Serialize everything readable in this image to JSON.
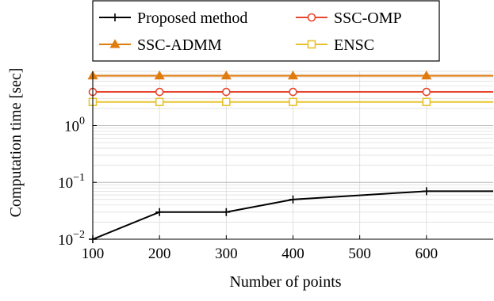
{
  "chart_data": {
    "type": "line",
    "title": "",
    "xlabel": "Number of points",
    "ylabel": "Computation time [sec]",
    "xlim": [
      100,
      700
    ],
    "ylim": [
      0.01,
      9
    ],
    "yscale": "log",
    "x_ticks": [
      "100",
      "200",
      "300",
      "400",
      "500",
      "600"
    ],
    "x_tick_values": [
      100,
      200,
      300,
      400,
      500,
      600
    ],
    "y_ticks": [
      {
        "value": 0.01,
        "base": "10",
        "exp": "−2"
      },
      {
        "value": 0.1,
        "base": "10",
        "exp": "−1"
      },
      {
        "value": 1,
        "base": "10",
        "exp": "0"
      }
    ],
    "grid": true,
    "legend_position": "top",
    "series": [
      {
        "name": "Proposed method",
        "color": "#000000",
        "marker": "plus",
        "x": [
          100,
          200,
          300,
          400,
          600,
          700
        ],
        "values": [
          0.01,
          0.03,
          0.03,
          0.05,
          0.07,
          0.07
        ]
      },
      {
        "name": "SSC-OMP",
        "color": "#e8452e",
        "marker": "circle",
        "x": [
          100,
          200,
          300,
          400,
          600,
          700
        ],
        "values": [
          3.9,
          3.9,
          3.9,
          3.9,
          3.9,
          3.9
        ]
      },
      {
        "name": "SSC-ADMM",
        "color": "#e07b0e",
        "marker": "triangle",
        "x": [
          100,
          200,
          300,
          400,
          600,
          700
        ],
        "values": [
          7.5,
          7.5,
          7.5,
          7.5,
          7.5,
          7.5
        ]
      },
      {
        "name": "ENSC",
        "color": "#e8c22e",
        "marker": "square",
        "x": [
          100,
          200,
          300,
          400,
          600,
          700
        ],
        "values": [
          2.6,
          2.6,
          2.6,
          2.6,
          2.6,
          2.6
        ]
      }
    ]
  }
}
